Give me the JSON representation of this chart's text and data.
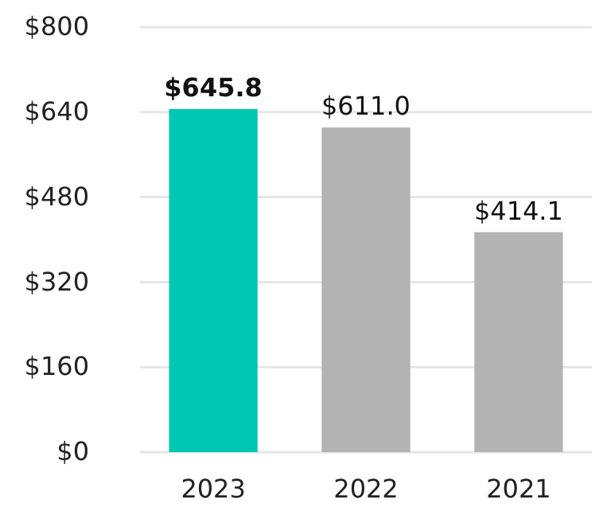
{
  "chart_data": {
    "type": "bar",
    "categories": [
      "2023",
      "2022",
      "2021"
    ],
    "values": [
      645.8,
      611.0,
      414.1
    ],
    "colors": [
      "#00c8b0",
      "#b3b3b3",
      "#b3b3b3"
    ],
    "value_labels": [
      "$645.8",
      "$611.0",
      "$414.1"
    ],
    "ylim": [
      0,
      800
    ],
    "yticks": [
      {
        "value": 0,
        "label": "$0"
      },
      {
        "value": 160,
        "label": "$160"
      },
      {
        "value": 320,
        "label": "$320"
      },
      {
        "value": 480,
        "label": "$480"
      },
      {
        "value": 640,
        "label": "$640"
      },
      {
        "value": 800,
        "label": "$800"
      }
    ],
    "grid": "y"
  }
}
